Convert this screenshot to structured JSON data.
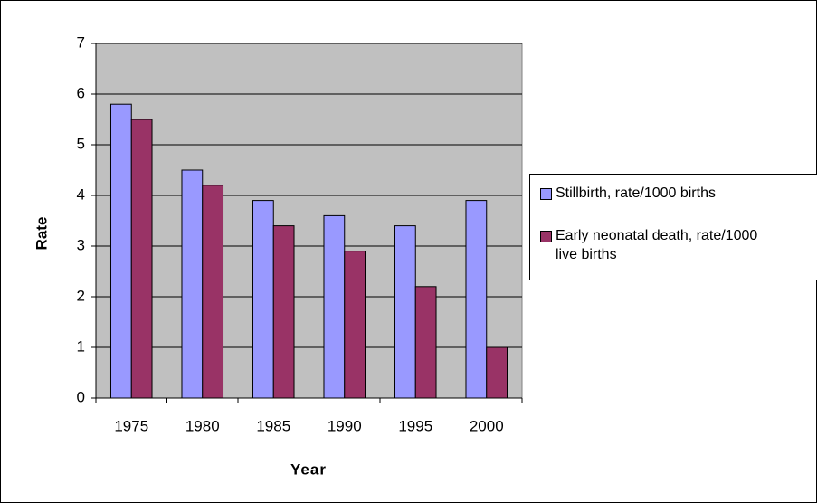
{
  "chart_data": {
    "type": "bar",
    "x_label": "Year",
    "y_label": "Rate",
    "categories": [
      "1975",
      "1980",
      "1985",
      "1990",
      "1995",
      "2000"
    ],
    "series": [
      {
        "name": "Stillbirth, rate/1000 births",
        "color": "#9999ff",
        "values": [
          5.8,
          4.5,
          3.9,
          3.6,
          3.4,
          3.9
        ]
      },
      {
        "name": "Early neonatal death, rate/1000 live births",
        "color": "#993366",
        "values": [
          5.5,
          4.2,
          3.4,
          2.9,
          2.2,
          1.0
        ]
      }
    ],
    "ylim": [
      0,
      7
    ],
    "yticks": [
      0,
      1,
      2,
      3,
      4,
      5,
      6,
      7
    ],
    "grid": true,
    "legend": "right"
  }
}
